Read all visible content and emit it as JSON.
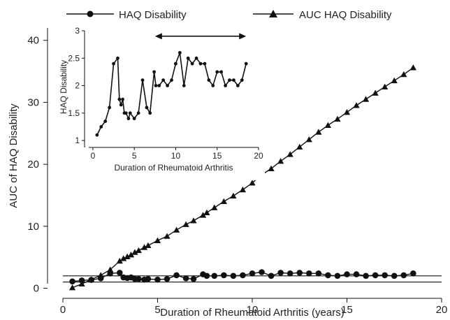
{
  "chart_data": [
    {
      "type": "line",
      "xlabel": "Duration of Rheumatoid Arthritis (years)",
      "ylabel": "AUC of HAQ Disability",
      "xlim": [
        0,
        20
      ],
      "ylim": [
        -0.5,
        42
      ],
      "x_ticks": [
        0,
        5,
        10,
        15,
        20
      ],
      "y_ticks": [
        0,
        10,
        20,
        30,
        40
      ],
      "grid": false,
      "legend_position": "top",
      "reference_lines_y": [
        1,
        2
      ],
      "series": [
        {
          "name": "HAQ Disability",
          "marker": "circle",
          "x": [
            0.5,
            1.0,
            1.5,
            2.0,
            2.5,
            3.0,
            3.2,
            3.4,
            3.6,
            3.8,
            4.0,
            4.3,
            4.5,
            5.0,
            5.5,
            6.0,
            6.5,
            6.9,
            7.4,
            7.6,
            8.0,
            8.5,
            9.0,
            9.5,
            10.0,
            10.5,
            11.0,
            11.5,
            12.0,
            12.5,
            13.0,
            13.5,
            14.0,
            14.5,
            15.0,
            15.5,
            16.0,
            16.5,
            17.0,
            17.5,
            18.0,
            18.5
          ],
          "y": [
            1.1,
            1.25,
            1.35,
            1.6,
            2.4,
            2.5,
            1.75,
            1.65,
            1.75,
            1.5,
            1.5,
            1.4,
            1.5,
            1.4,
            1.5,
            2.1,
            1.6,
            1.5,
            2.25,
            2.0,
            2.0,
            2.1,
            2.0,
            2.1,
            2.4,
            2.6,
            2.0,
            2.5,
            2.4,
            2.5,
            2.4,
            2.4,
            2.1,
            2.0,
            2.25,
            2.25,
            2.0,
            2.1,
            2.1,
            2.0,
            2.1,
            2.4
          ]
        },
        {
          "name": "AUC HAQ Disability",
          "marker": "triangle",
          "x": [
            0.5,
            1.0,
            1.5,
            2.0,
            2.5,
            3.0,
            3.2,
            3.4,
            3.6,
            3.8,
            4.0,
            4.3,
            4.5,
            5.0,
            5.5,
            6.0,
            6.5,
            6.9,
            7.4,
            7.6,
            8.0,
            8.5,
            9.0,
            9.5,
            10.0,
            10.5,
            11.0,
            11.5,
            12.0,
            12.5,
            13.0,
            13.5,
            14.0,
            14.5,
            15.0,
            15.5,
            16.0,
            16.5,
            17.0,
            17.5,
            18.0,
            18.5
          ],
          "y": [
            0.1,
            0.7,
            1.4,
            2.1,
            3.0,
            4.4,
            4.8,
            5.1,
            5.4,
            5.8,
            6.1,
            6.6,
            6.9,
            7.7,
            8.4,
            9.4,
            10.3,
            10.9,
            11.8,
            12.2,
            13.0,
            14.0,
            14.9,
            15.9,
            17.0,
            18.3,
            19.3,
            20.5,
            21.6,
            22.8,
            24.0,
            25.2,
            26.3,
            27.3,
            28.4,
            29.5,
            30.5,
            31.5,
            32.5,
            33.5,
            34.5,
            35.6
          ]
        }
      ]
    },
    {
      "type": "line",
      "xlabel": "Duration of Rheumatoid Arthritis",
      "ylabel": "HAQ Disability",
      "xlim": [
        -0.5,
        20
      ],
      "ylim": [
        0.95,
        3.0
      ],
      "x_ticks": [
        0,
        5,
        10,
        15,
        20
      ],
      "y_ticks": [
        1,
        1.5,
        2,
        2.5,
        3
      ],
      "grid": false,
      "annotation": {
        "type": "double-arrow",
        "x_start": 7.5,
        "x_end": 18.5,
        "y": 2.9
      },
      "series": [
        {
          "marker": "circle",
          "x": [
            0.5,
            1.0,
            1.5,
            2.0,
            2.5,
            3.0,
            3.2,
            3.4,
            3.6,
            3.8,
            4.0,
            4.3,
            4.5,
            5.0,
            5.5,
            6.0,
            6.5,
            6.9,
            7.4,
            7.6,
            8.0,
            8.5,
            9.0,
            9.5,
            10.0,
            10.5,
            11.0,
            11.5,
            12.0,
            12.5,
            13.0,
            13.5,
            14.0,
            14.5,
            15.0,
            15.5,
            16.0,
            16.5,
            17.0,
            17.5,
            18.0,
            18.5
          ],
          "y": [
            1.1,
            1.25,
            1.35,
            1.6,
            2.4,
            2.5,
            1.75,
            1.65,
            1.75,
            1.5,
            1.5,
            1.4,
            1.5,
            1.4,
            1.5,
            2.1,
            1.6,
            1.5,
            2.25,
            2.0,
            2.0,
            2.1,
            2.0,
            2.1,
            2.4,
            2.6,
            2.0,
            2.5,
            2.4,
            2.5,
            2.4,
            2.4,
            2.1,
            2.0,
            2.25,
            2.25,
            2.0,
            2.1,
            2.1,
            2.0,
            2.1,
            2.4
          ]
        }
      ]
    }
  ]
}
